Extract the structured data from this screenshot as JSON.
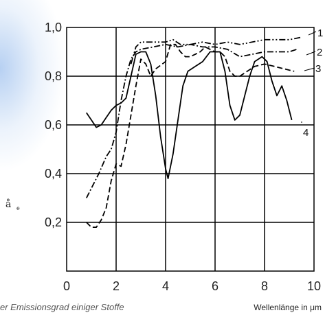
{
  "chart_data": {
    "type": "line",
    "caption": "er Emissionsgrad einiger Stoffe",
    "xlabel": "Wellenlänge in μm",
    "ylabel_symbol": "å",
    "ylabel_sub": "e",
    "xlim": [
      0,
      10
    ],
    "ylim": [
      0,
      1.0
    ],
    "x_ticks": [
      "0",
      "2",
      "4",
      "6",
      "8",
      "10"
    ],
    "y_ticks": [
      "0,2",
      "0,4",
      "0,6",
      "0,8",
      "1,0"
    ],
    "grid": true,
    "series": [
      {
        "name": "1",
        "style": "dash-dot-dot",
        "points": [
          [
            2.6,
            0.85
          ],
          [
            2.8,
            0.92
          ],
          [
            3.0,
            0.94
          ],
          [
            3.5,
            0.94
          ],
          [
            4.0,
            0.94
          ],
          [
            4.3,
            0.95
          ],
          [
            4.6,
            0.93
          ],
          [
            5.0,
            0.93
          ],
          [
            5.5,
            0.94
          ],
          [
            6.0,
            0.93
          ],
          [
            6.5,
            0.94
          ],
          [
            7.0,
            0.93
          ],
          [
            7.5,
            0.94
          ],
          [
            8.0,
            0.95
          ],
          [
            8.5,
            0.95
          ],
          [
            9.0,
            0.95
          ],
          [
            9.5,
            0.96
          ]
        ]
      },
      {
        "name": "2",
        "style": "dash-dot",
        "points": [
          [
            0.8,
            0.3
          ],
          [
            1.0,
            0.34
          ],
          [
            1.3,
            0.4
          ],
          [
            1.6,
            0.47
          ],
          [
            1.8,
            0.5
          ],
          [
            2.0,
            0.57
          ],
          [
            2.2,
            0.7
          ],
          [
            2.4,
            0.8
          ],
          [
            2.6,
            0.87
          ],
          [
            2.8,
            0.9
          ],
          [
            3.0,
            0.91
          ],
          [
            3.5,
            0.92
          ],
          [
            4.0,
            0.93
          ],
          [
            4.5,
            0.92
          ],
          [
            5.0,
            0.93
          ],
          [
            5.5,
            0.92
          ],
          [
            6.0,
            0.92
          ],
          [
            6.5,
            0.91
          ],
          [
            7.0,
            0.88
          ],
          [
            7.5,
            0.89
          ],
          [
            8.0,
            0.9
          ],
          [
            8.5,
            0.9
          ],
          [
            9.0,
            0.9
          ],
          [
            9.3,
            0.91
          ]
        ]
      },
      {
        "name": "3",
        "style": "dashed",
        "points": [
          [
            0.8,
            0.2
          ],
          [
            1.0,
            0.18
          ],
          [
            1.2,
            0.18
          ],
          [
            1.4,
            0.21
          ],
          [
            1.6,
            0.26
          ],
          [
            1.8,
            0.37
          ],
          [
            2.0,
            0.44
          ],
          [
            2.2,
            0.43
          ],
          [
            2.4,
            0.52
          ],
          [
            2.6,
            0.64
          ],
          [
            2.8,
            0.76
          ],
          [
            3.0,
            0.87
          ],
          [
            3.2,
            0.85
          ],
          [
            3.4,
            0.8
          ],
          [
            3.6,
            0.83
          ],
          [
            4.0,
            0.86
          ],
          [
            4.2,
            0.93
          ],
          [
            4.4,
            0.93
          ],
          [
            4.6,
            0.9
          ],
          [
            4.8,
            0.88
          ],
          [
            5.0,
            0.88
          ],
          [
            5.2,
            0.89
          ],
          [
            5.4,
            0.9
          ],
          [
            5.6,
            0.92
          ],
          [
            5.8,
            0.91
          ],
          [
            6.0,
            0.9
          ],
          [
            6.2,
            0.9
          ],
          [
            6.4,
            0.88
          ],
          [
            6.6,
            0.82
          ],
          [
            6.8,
            0.8
          ],
          [
            7.0,
            0.8
          ],
          [
            7.3,
            0.82
          ],
          [
            7.6,
            0.84
          ],
          [
            8.0,
            0.85
          ],
          [
            8.4,
            0.84
          ],
          [
            8.8,
            0.83
          ],
          [
            9.2,
            0.82
          ]
        ]
      },
      {
        "name": "4",
        "style": "solid",
        "points": [
          [
            0.8,
            0.65
          ],
          [
            1.0,
            0.62
          ],
          [
            1.2,
            0.59
          ],
          [
            1.4,
            0.6
          ],
          [
            1.6,
            0.63
          ],
          [
            1.8,
            0.66
          ],
          [
            2.0,
            0.68
          ],
          [
            2.2,
            0.69
          ],
          [
            2.4,
            0.71
          ],
          [
            2.6,
            0.8
          ],
          [
            2.8,
            0.89
          ],
          [
            3.0,
            0.9
          ],
          [
            3.2,
            0.9
          ],
          [
            3.4,
            0.85
          ],
          [
            3.6,
            0.72
          ],
          [
            3.8,
            0.55
          ],
          [
            4.0,
            0.42
          ],
          [
            4.1,
            0.38
          ],
          [
            4.3,
            0.48
          ],
          [
            4.5,
            0.62
          ],
          [
            4.7,
            0.76
          ],
          [
            4.9,
            0.82
          ],
          [
            5.2,
            0.84
          ],
          [
            5.5,
            0.86
          ],
          [
            5.8,
            0.9
          ],
          [
            6.0,
            0.9
          ],
          [
            6.2,
            0.9
          ],
          [
            6.4,
            0.82
          ],
          [
            6.6,
            0.68
          ],
          [
            6.8,
            0.62
          ],
          [
            7.0,
            0.64
          ],
          [
            7.2,
            0.72
          ],
          [
            7.4,
            0.8
          ],
          [
            7.6,
            0.86
          ],
          [
            7.9,
            0.88
          ],
          [
            8.1,
            0.86
          ],
          [
            8.3,
            0.78
          ],
          [
            8.5,
            0.72
          ],
          [
            8.7,
            0.76
          ],
          [
            8.9,
            0.7
          ],
          [
            9.1,
            0.62
          ]
        ]
      }
    ]
  }
}
